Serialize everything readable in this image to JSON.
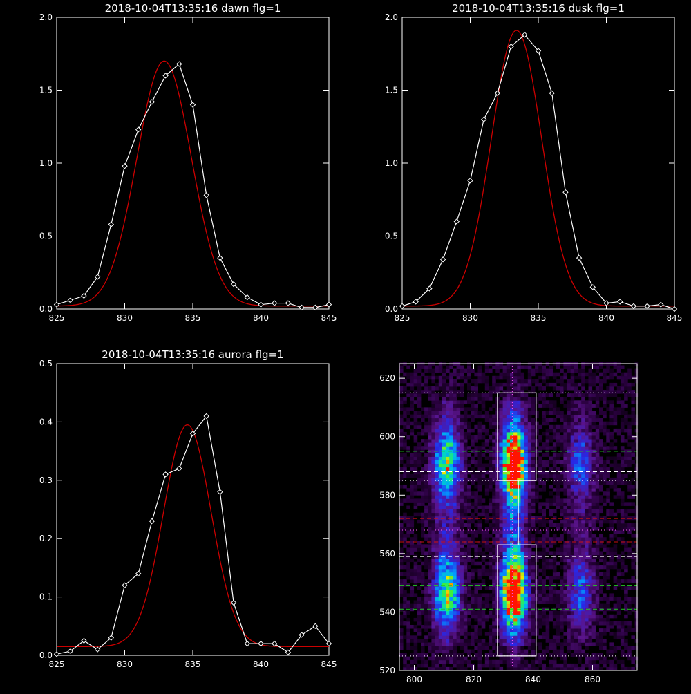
{
  "colors": {
    "background": "#000000",
    "axes": "#ffffff",
    "observed": "#ffffff",
    "fit": "#cc0000",
    "green_lines": "#22cc22",
    "red_lines": "#cc1111",
    "white_lines": "#ffffff",
    "magenta_dots": "#ff55ff"
  },
  "chart_data": [
    {
      "type": "line",
      "title": "2018-10-04T13:35:16 dawn flg=1",
      "xlim": [
        825,
        845
      ],
      "ylim": [
        0,
        2.0
      ],
      "xticks": [
        825,
        830,
        835,
        840,
        845
      ],
      "yticks": [
        0.0,
        0.5,
        1.0,
        1.5,
        2.0
      ],
      "xtick_labels": [
        "825",
        "830",
        "835",
        "840",
        "845"
      ],
      "ytick_labels": [
        "0.0",
        "0.5",
        "1.0",
        "1.5",
        "2.0"
      ],
      "observed": {
        "x": [
          825,
          826,
          827,
          828,
          829,
          830,
          831,
          832,
          833,
          834,
          835,
          836,
          837,
          838,
          839,
          840,
          841,
          842,
          843,
          844,
          845
        ],
        "y": [
          0.03,
          0.06,
          0.09,
          0.22,
          0.58,
          0.98,
          1.23,
          1.42,
          1.6,
          1.68,
          1.4,
          0.78,
          0.35,
          0.17,
          0.08,
          0.03,
          0.04,
          0.04,
          0.01,
          0.01,
          0.03
        ]
      },
      "fit": {
        "amplitude": 1.68,
        "center": 832.9,
        "sigma": 2.0,
        "offset": 0.02
      }
    },
    {
      "type": "line",
      "title": "2018-10-04T13:35:16 dusk flg=1",
      "xlim": [
        825,
        845
      ],
      "ylim": [
        0,
        2.0
      ],
      "xticks": [
        825,
        830,
        835,
        840,
        845
      ],
      "yticks": [
        0.0,
        0.5,
        1.0,
        1.5,
        2.0
      ],
      "xtick_labels": [
        "825",
        "830",
        "835",
        "840",
        "845"
      ],
      "ytick_labels": [
        "0.0",
        "0.5",
        "1.0",
        "1.5",
        "2.0"
      ],
      "observed": {
        "x": [
          825,
          826,
          827,
          828,
          829,
          830,
          831,
          832,
          833,
          834,
          835,
          836,
          837,
          838,
          839,
          840,
          841,
          842,
          843,
          844,
          845
        ],
        "y": [
          0.02,
          0.05,
          0.14,
          0.34,
          0.6,
          0.88,
          1.3,
          1.48,
          1.8,
          1.88,
          1.77,
          1.48,
          0.8,
          0.35,
          0.15,
          0.04,
          0.05,
          0.02,
          0.02,
          0.03,
          0.0
        ]
      },
      "fit": {
        "amplitude": 1.89,
        "center": 833.4,
        "sigma": 1.85,
        "offset": 0.02
      }
    },
    {
      "type": "line",
      "title": "2018-10-04T13:35:16 aurora flg=1",
      "xlim": [
        825,
        845
      ],
      "ylim": [
        0,
        0.5
      ],
      "xticks": [
        825,
        830,
        835,
        840,
        845
      ],
      "yticks": [
        0.0,
        0.1,
        0.2,
        0.3,
        0.4,
        0.5
      ],
      "xtick_labels": [
        "825",
        "830",
        "835",
        "840",
        "845"
      ],
      "ytick_labels": [
        "0.0",
        "0.1",
        "0.2",
        "0.3",
        "0.4",
        "0.5"
      ],
      "observed": {
        "x": [
          825,
          826,
          827,
          828,
          829,
          830,
          831,
          832,
          833,
          834,
          835,
          836,
          837,
          838,
          839,
          840,
          841,
          842,
          843,
          844,
          845
        ],
        "y": [
          0.002,
          0.007,
          0.025,
          0.01,
          0.03,
          0.12,
          0.14,
          0.23,
          0.31,
          0.32,
          0.38,
          0.41,
          0.28,
          0.09,
          0.02,
          0.02,
          0.02,
          0.005,
          0.035,
          0.05,
          0.02
        ]
      },
      "fit": {
        "amplitude": 0.38,
        "center": 834.6,
        "sigma": 1.75,
        "offset": 0.015
      }
    },
    {
      "type": "heatmap",
      "xlim": [
        795,
        875
      ],
      "ylim": [
        520,
        625
      ],
      "xticks": [
        800,
        820,
        840,
        860
      ],
      "yticks": [
        520,
        540,
        560,
        580,
        600,
        620
      ],
      "xtick_labels": [
        "800",
        "820",
        "840",
        "860"
      ],
      "ytick_labels": [
        "520",
        "540",
        "560",
        "580",
        "600",
        "620"
      ],
      "emission_columns": [
        {
          "x": 811,
          "width": 3.0,
          "strength": 0.55
        },
        {
          "x": 833.5,
          "width": 2.8,
          "strength": 1.0
        },
        {
          "x": 856,
          "width": 3.0,
          "strength": 0.28
        }
      ],
      "emission_rows": [
        {
          "y": 591,
          "width": 8.0
        },
        {
          "y": 547,
          "width": 8.0
        }
      ],
      "boxes": [
        {
          "x0": 828,
          "x1": 841,
          "y0": 585,
          "y1": 615
        },
        {
          "x0": 828,
          "x1": 841,
          "y0": 525,
          "y1": 563
        }
      ],
      "vertical_white_line": {
        "x": 835,
        "y0": 563,
        "y1": 585
      },
      "vertical_magenta_dotted_x": 833,
      "white_dotted_y": [
        615,
        585,
        525
      ],
      "white_dashed_y": [
        588,
        559
      ],
      "green_dashed_y": [
        595,
        549,
        541
      ],
      "red_dashed_y": [
        572,
        564
      ],
      "magenta_dotted_y": [
        568
      ]
    }
  ]
}
